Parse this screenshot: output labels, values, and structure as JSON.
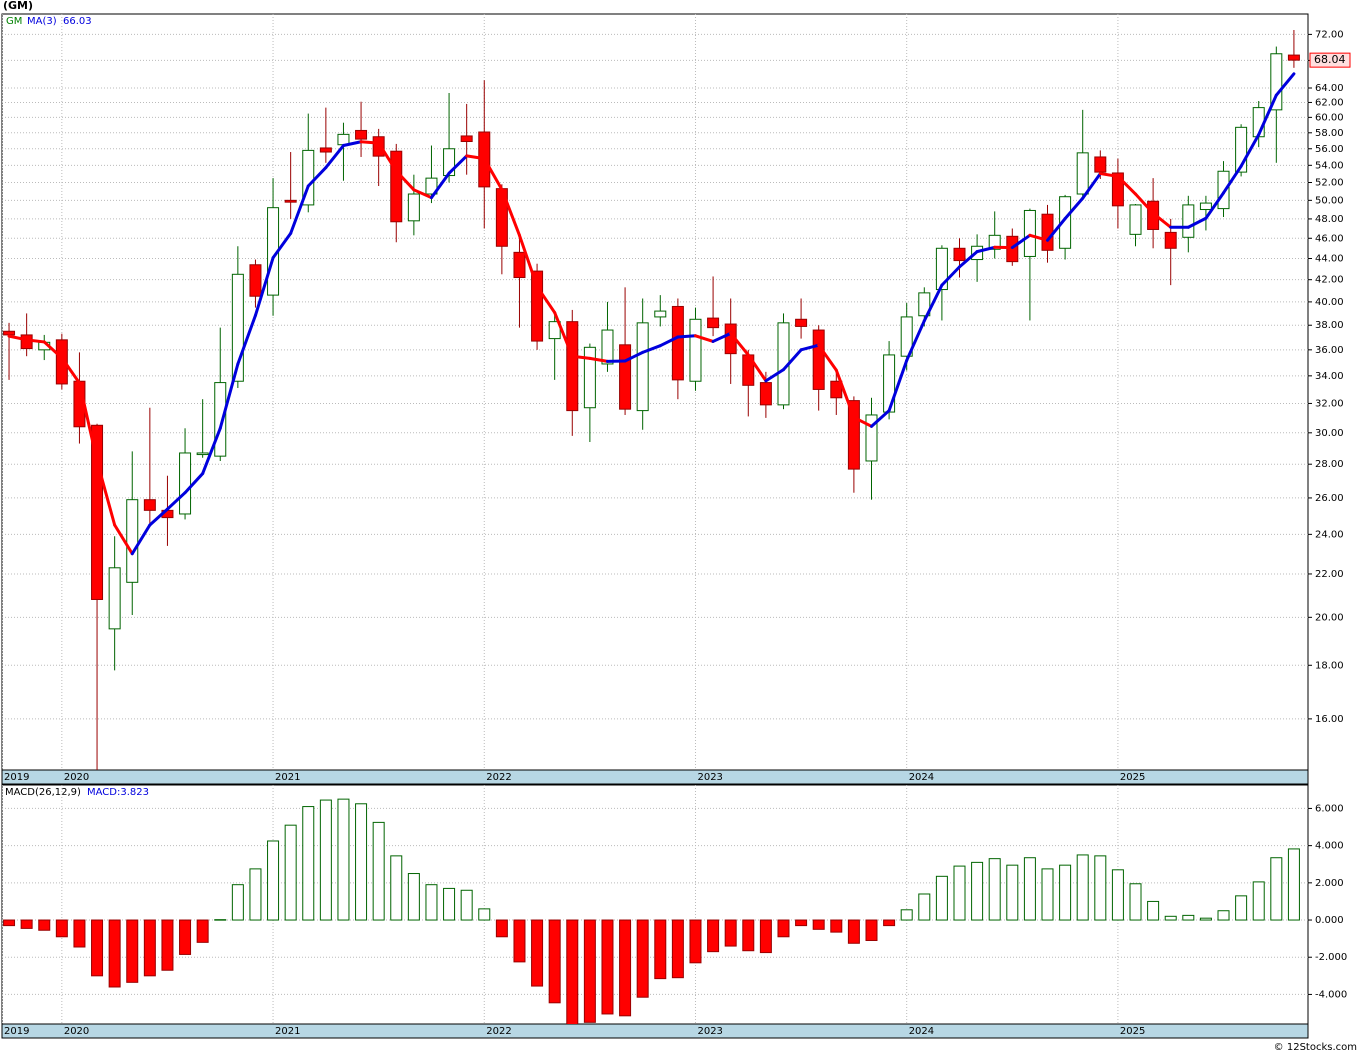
{
  "chart_data": [
    {
      "type": "candlestick",
      "title": "(GM)",
      "name": "GM",
      "color": "#008000",
      "up_color": "#ffffff",
      "up_stroke": "#006400",
      "down_color": "#ff0000",
      "down_stroke": "#990000",
      "log_scale": true,
      "grid": true,
      "open": [
        37.5,
        37.2,
        36.0,
        36.8,
        33.6,
        30.5,
        19.5,
        21.6,
        25.9,
        25.3,
        25.1,
        28.6,
        28.5,
        33.6,
        43.4,
        40.6,
        50.0,
        49.5,
        56.1,
        56.5,
        58.3,
        57.5,
        55.7,
        47.8,
        50.7,
        52.8,
        57.6,
        58.1,
        51.3,
        44.6,
        42.8,
        36.9,
        38.3,
        31.7,
        34.9,
        36.4,
        31.5,
        38.7,
        39.6,
        33.6,
        38.6,
        38.1,
        35.6,
        33.5,
        31.9,
        38.5,
        37.6,
        33.6,
        32.2,
        28.2,
        31.4,
        35.5,
        38.8,
        41.1,
        45.0,
        43.9,
        44.9,
        46.2,
        44.2,
        48.5,
        45.0,
        50.7,
        55.0,
        53.1,
        46.4,
        49.9,
        46.6,
        46.1,
        49.0,
        49.1,
        53.2,
        57.5,
        61.0,
        68.8
      ],
      "high": [
        38.2,
        39.0,
        37.2,
        37.3,
        35.8,
        30.6,
        23.9,
        28.8,
        31.7,
        27.3,
        30.3,
        32.3,
        37.8,
        45.2,
        43.9,
        52.5,
        55.6,
        60.5,
        61.3,
        59.3,
        62.1,
        58.5,
        56.6,
        52.9,
        56.4,
        63.3,
        61.8,
        65.1,
        51.8,
        46.0,
        43.5,
        39.0,
        39.3,
        36.5,
        40.0,
        41.3,
        40.3,
        40.6,
        40.3,
        39.5,
        42.3,
        40.3,
        36.0,
        34.3,
        39.0,
        40.3,
        38.0,
        34.3,
        32.5,
        32.4,
        36.7,
        39.9,
        41.3,
        45.3,
        46.0,
        46.4,
        48.8,
        47.0,
        49.1,
        49.5,
        50.6,
        61.0,
        55.8,
        54.8,
        49.6,
        52.5,
        48.0,
        50.5,
        50.5,
        54.5,
        59.1,
        62.2,
        70.1,
        72.7
      ],
      "low": [
        33.7,
        35.5,
        35.2,
        33.0,
        29.3,
        14.3,
        17.8,
        20.1,
        24.5,
        23.4,
        24.8,
        28.4,
        28.2,
        33.1,
        39.5,
        38.8,
        48.0,
        48.7,
        54.3,
        52.2,
        55.0,
        51.6,
        45.6,
        46.3,
        49.7,
        52.0,
        52.9,
        47.0,
        42.5,
        37.8,
        36.0,
        33.7,
        29.8,
        29.4,
        34.3,
        31.2,
        30.2,
        37.9,
        32.3,
        32.9,
        37.1,
        33.4,
        31.1,
        31.0,
        31.6,
        36.9,
        31.5,
        31.2,
        26.3,
        25.9,
        30.9,
        34.4,
        37.9,
        38.4,
        42.2,
        41.8,
        44.0,
        43.3,
        38.4,
        43.6,
        43.9,
        50.2,
        52.4,
        47.0,
        45.2,
        45.0,
        41.5,
        44.6,
        46.8,
        48.2,
        52.7,
        56.2,
        54.3,
        66.9
      ],
      "close": [
        37.2,
        36.1,
        36.6,
        33.4,
        30.4,
        20.8,
        22.3,
        25.9,
        25.3,
        24.9,
        28.7,
        28.7,
        33.5,
        42.5,
        40.5,
        49.2,
        49.8,
        55.8,
        55.6,
        57.8,
        57.2,
        55.1,
        47.7,
        50.7,
        52.5,
        56.0,
        56.9,
        51.5,
        45.2,
        42.2,
        36.7,
        38.3,
        31.5,
        36.2,
        37.6,
        31.6,
        38.2,
        39.2,
        33.7,
        38.5,
        37.8,
        35.7,
        33.3,
        31.9,
        38.2,
        37.9,
        33.0,
        32.4,
        27.7,
        31.2,
        35.6,
        38.7,
        40.8,
        45.0,
        43.8,
        45.2,
        46.3,
        43.7,
        48.9,
        44.8,
        50.4,
        55.5,
        53.2,
        49.4,
        49.5,
        46.9,
        45.0,
        49.5,
        49.7,
        53.3,
        58.7,
        61.3,
        69.0,
        68.04
      ],
      "ma": {
        "name": "MA(3)",
        "color": "#0000dd",
        "down_color": "#ff0000",
        "values": [
          37.1,
          36.8,
          36.63,
          35.37,
          33.47,
          28.2,
          24.5,
          23.0,
          24.5,
          25.37,
          26.3,
          27.43,
          30.3,
          34.9,
          38.83,
          44.07,
          46.5,
          51.6,
          53.73,
          56.4,
          56.87,
          56.7,
          53.33,
          51.17,
          50.3,
          53.07,
          55.13,
          54.8,
          51.2,
          46.3,
          41.37,
          39.07,
          35.5,
          35.33,
          35.1,
          35.13,
          35.8,
          36.33,
          37.03,
          37.13,
          36.67,
          37.33,
          35.6,
          33.63,
          34.47,
          36.0,
          36.37,
          34.43,
          31.03,
          30.43,
          31.5,
          35.17,
          38.37,
          41.5,
          43.2,
          44.67,
          45.1,
          45.07,
          46.3,
          45.8,
          48.03,
          50.23,
          53.03,
          52.7,
          50.7,
          48.6,
          47.13,
          47.13,
          48.07,
          50.83,
          53.9,
          57.77,
          63.0,
          66.03
        ]
      },
      "ylim": [
        14.3,
        75.3
      ],
      "yticks": [
        {
          "value": 16,
          "label": "16.00"
        },
        {
          "value": 18,
          "label": "18.00"
        },
        {
          "value": 20,
          "label": "20.00"
        },
        {
          "value": 22,
          "label": "22.00"
        },
        {
          "value": 24,
          "label": "24.00"
        },
        {
          "value": 26,
          "label": "26.00"
        },
        {
          "value": 28,
          "label": "28.00"
        },
        {
          "value": 30,
          "label": "30.00"
        },
        {
          "value": 32,
          "label": "32.00"
        },
        {
          "value": 34,
          "label": "34.00"
        },
        {
          "value": 36,
          "label": "36.00"
        },
        {
          "value": 38,
          "label": "38.00"
        },
        {
          "value": 40,
          "label": "40.00"
        },
        {
          "value": 42,
          "label": "42.00"
        },
        {
          "value": 44,
          "label": "44.00"
        },
        {
          "value": 46,
          "label": "46.00"
        },
        {
          "value": 48,
          "label": "48.00"
        },
        {
          "value": 50,
          "label": "50.00"
        },
        {
          "value": 52,
          "label": "52.00"
        },
        {
          "value": 54,
          "label": "54.00"
        },
        {
          "value": 56,
          "label": "56.00"
        },
        {
          "value": 58,
          "label": "58.00"
        },
        {
          "value": 60,
          "label": "60.00"
        },
        {
          "value": 62,
          "label": "62.00"
        },
        {
          "value": 64,
          "label": "64.00"
        },
        {
          "value": 68,
          "label": "68.00"
        },
        {
          "value": 72,
          "label": "72.00"
        }
      ],
      "xlim": [
        -0.4,
        73.8
      ],
      "xticks": [
        {
          "value": -0.4,
          "label": "2019"
        },
        {
          "value": 3,
          "label": "2020"
        },
        {
          "value": 15,
          "label": "2021"
        },
        {
          "value": 27,
          "label": "2022"
        },
        {
          "value": 39,
          "label": "2023"
        },
        {
          "value": 51,
          "label": "2024"
        },
        {
          "value": 63,
          "label": "2025"
        }
      ]
    },
    {
      "type": "bar",
      "name": "MACD(26,12,9)",
      "value_label": "MACD:3.823",
      "up_color": "#ffffff",
      "up_stroke": "#006400",
      "down_color": "#ff0000",
      "down_stroke": "#990000",
      "grid": true,
      "values": [
        -0.3,
        -0.45,
        -0.55,
        -0.9,
        -1.45,
        -3.0,
        -3.6,
        -3.35,
        -3.0,
        -2.7,
        -1.85,
        -1.2,
        0.02,
        1.9,
        2.75,
        4.25,
        5.1,
        6.1,
        6.45,
        6.5,
        6.25,
        5.25,
        3.45,
        2.5,
        1.9,
        1.7,
        1.6,
        0.6,
        -0.9,
        -2.25,
        -3.55,
        -4.45,
        -5.7,
        -5.5,
        -5.05,
        -5.15,
        -4.15,
        -3.15,
        -3.1,
        -2.3,
        -1.7,
        -1.4,
        -1.65,
        -1.75,
        -0.9,
        -0.3,
        -0.5,
        -0.65,
        -1.25,
        -1.1,
        -0.3,
        0.55,
        1.4,
        2.35,
        2.9,
        3.1,
        3.3,
        2.95,
        3.35,
        2.75,
        2.95,
        3.5,
        3.45,
        2.7,
        1.95,
        1.0,
        0.2,
        0.25,
        0.1,
        0.5,
        1.3,
        2.05,
        3.35,
        3.823
      ],
      "ylim": [
        -5.59,
        7.26
      ],
      "yticks": [
        {
          "value": -4,
          "label": "-4.000"
        },
        {
          "value": -2,
          "label": "-2.000"
        },
        {
          "value": 0,
          "label": "0.000"
        },
        {
          "value": 2,
          "label": "2.000"
        },
        {
          "value": 4,
          "label": "4.000"
        },
        {
          "value": 6,
          "label": "6.000"
        }
      ],
      "xlim": [
        -0.4,
        73.8
      ],
      "xticks": [
        {
          "value": -0.4,
          "label": "2019"
        },
        {
          "value": 3,
          "label": "2020"
        },
        {
          "value": 15,
          "label": "2021"
        },
        {
          "value": 27,
          "label": "2022"
        },
        {
          "value": 39,
          "label": "2023"
        },
        {
          "value": 51,
          "label": "2024"
        },
        {
          "value": 63,
          "label": "2025"
        }
      ]
    }
  ],
  "footer": "© 12Stocks.com"
}
